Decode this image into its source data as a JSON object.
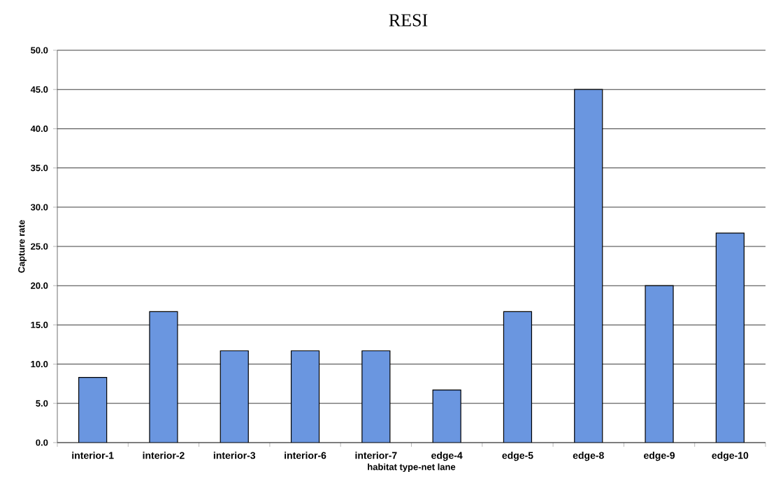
{
  "chart_data": {
    "type": "bar",
    "title": "RESI",
    "xlabel": "habitat type-net lane",
    "ylabel": "Capture rate",
    "categories": [
      "interior-1",
      "interior-2",
      "interior-3",
      "interior-6",
      "interior-7",
      "edge-4",
      "edge-5",
      "edge-8",
      "edge-9",
      "edge-10"
    ],
    "values": [
      8.3,
      16.7,
      11.7,
      11.7,
      11.7,
      6.7,
      16.7,
      45.0,
      20.0,
      26.7
    ],
    "color": "#6a96e0",
    "ylim": [
      0,
      50
    ],
    "yticks": [
      {
        "value": 0,
        "label": "0.0"
      },
      {
        "value": 5,
        "label": "5.0"
      },
      {
        "value": 10,
        "label": "10.0"
      },
      {
        "value": 15,
        "label": "15.0"
      },
      {
        "value": 20,
        "label": "20.0"
      },
      {
        "value": 25,
        "label": "25.0"
      },
      {
        "value": 30,
        "label": "30.0"
      },
      {
        "value": 35,
        "label": "35.0"
      },
      {
        "value": 40,
        "label": "40.0"
      },
      {
        "value": 45,
        "label": "45.0"
      },
      {
        "value": 50,
        "label": "50.0"
      }
    ],
    "grid": "y"
  }
}
